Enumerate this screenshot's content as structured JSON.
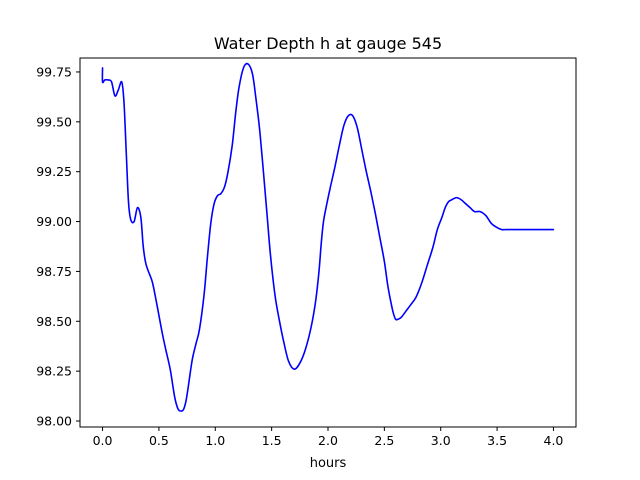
{
  "chart_data": {
    "type": "line",
    "title": "Water Depth h at gauge 545",
    "xlabel": "hours",
    "ylabel": "",
    "xlim": [
      -0.2,
      4.2
    ],
    "ylim": [
      97.97,
      99.82
    ],
    "x_ticks": [
      0.0,
      0.5,
      1.0,
      1.5,
      2.0,
      2.5,
      3.0,
      3.5,
      4.0
    ],
    "x_tick_labels": [
      "0.0",
      "0.5",
      "1.0",
      "1.5",
      "2.0",
      "2.5",
      "3.0",
      "3.5",
      "4.0"
    ],
    "y_ticks": [
      98.0,
      98.25,
      98.5,
      98.75,
      99.0,
      99.25,
      99.5,
      99.75
    ],
    "y_tick_labels": [
      "98.00",
      "98.25",
      "98.50",
      "98.75",
      "99.00",
      "99.25",
      "99.50",
      "99.75"
    ],
    "grid": false,
    "series": [
      {
        "color": "#0000ff",
        "x": [
          0.0,
          0.0,
          0.02,
          0.05,
          0.08,
          0.11,
          0.14,
          0.17,
          0.19,
          0.21,
          0.23,
          0.25,
          0.28,
          0.31,
          0.34,
          0.36,
          0.38,
          0.4,
          0.44,
          0.47,
          0.5,
          0.53,
          0.56,
          0.6,
          0.64,
          0.67,
          0.7,
          0.72,
          0.74,
          0.76,
          0.78,
          0.8,
          0.83,
          0.86,
          0.9,
          0.93,
          0.96,
          0.99,
          1.02,
          1.05,
          1.08,
          1.11,
          1.15,
          1.18,
          1.21,
          1.25,
          1.29,
          1.33,
          1.36,
          1.39,
          1.41,
          1.43,
          1.46,
          1.49,
          1.53,
          1.57,
          1.61,
          1.65,
          1.7,
          1.75,
          1.8,
          1.85,
          1.89,
          1.92,
          1.94,
          1.96,
          1.99,
          2.02,
          2.06,
          2.1,
          2.14,
          2.18,
          2.22,
          2.26,
          2.3,
          2.34,
          2.38,
          2.42,
          2.46,
          2.5,
          2.53,
          2.56,
          2.58,
          2.6,
          2.62,
          2.65,
          2.69,
          2.73,
          2.78,
          2.83,
          2.88,
          2.93,
          2.97,
          3.01,
          3.04,
          3.07,
          3.1,
          3.14,
          3.18,
          3.22,
          3.26,
          3.3,
          3.35,
          3.4,
          3.45,
          3.5,
          3.54,
          3.58,
          3.62,
          3.66,
          3.7,
          3.74,
          3.78,
          3.82,
          3.86,
          3.9,
          3.94,
          3.97,
          4.0
        ],
        "values": [
          99.77,
          99.7,
          99.71,
          99.71,
          99.7,
          99.63,
          99.66,
          99.7,
          99.6,
          99.35,
          99.1,
          99.01,
          99.0,
          99.07,
          99.02,
          98.88,
          98.8,
          98.76,
          98.7,
          98.62,
          98.53,
          98.44,
          98.36,
          98.26,
          98.12,
          98.06,
          98.05,
          98.06,
          98.1,
          98.17,
          98.25,
          98.32,
          98.39,
          98.46,
          98.63,
          98.82,
          98.99,
          99.09,
          99.13,
          99.14,
          99.17,
          99.24,
          99.38,
          99.54,
          99.67,
          99.77,
          99.79,
          99.74,
          99.62,
          99.48,
          99.36,
          99.23,
          99.03,
          98.83,
          98.63,
          98.5,
          98.39,
          98.3,
          98.26,
          98.29,
          98.36,
          98.47,
          98.6,
          98.75,
          98.89,
          99.0,
          99.09,
          99.17,
          99.27,
          99.38,
          99.48,
          99.53,
          99.53,
          99.47,
          99.36,
          99.25,
          99.15,
          99.04,
          98.92,
          98.8,
          98.68,
          98.59,
          98.54,
          98.51,
          98.51,
          98.52,
          98.55,
          98.58,
          98.62,
          98.69,
          98.78,
          98.87,
          98.96,
          99.02,
          99.07,
          99.1,
          99.11,
          99.12,
          99.11,
          99.09,
          99.07,
          99.05,
          99.05,
          99.03,
          98.99,
          98.97,
          98.96,
          98.96,
          98.96,
          98.96,
          98.96,
          98.96,
          98.96,
          98.96,
          98.96,
          98.96,
          98.96,
          98.96,
          98.96
        ]
      }
    ]
  }
}
